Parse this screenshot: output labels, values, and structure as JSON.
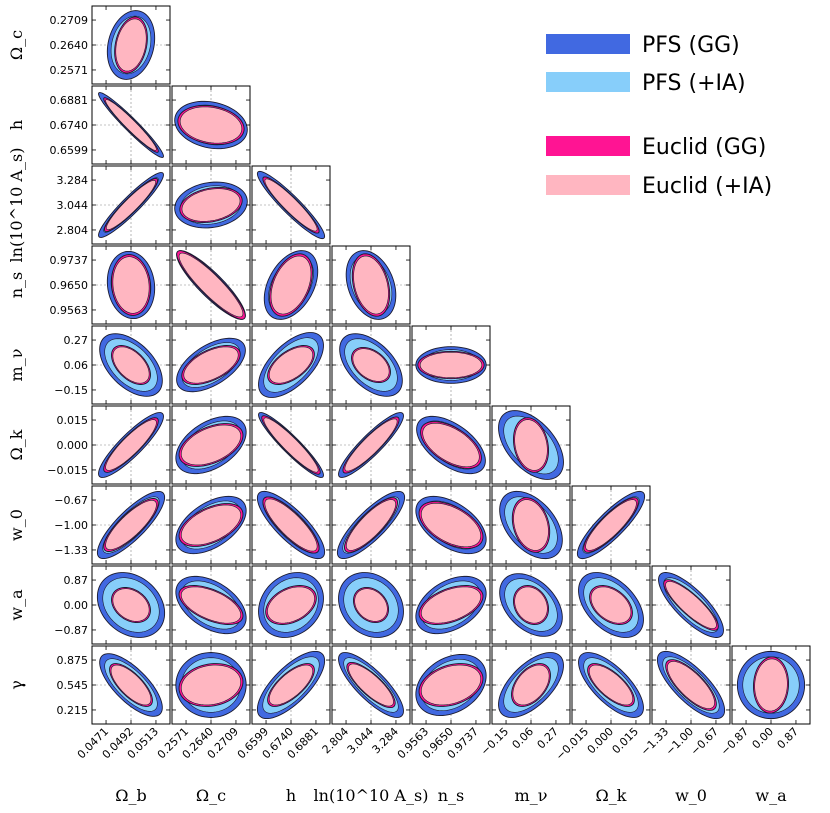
{
  "chart_data": {
    "type": "corner-plot",
    "title": "",
    "parameters": [
      {
        "key": "Ob",
        "label": "Ω_b",
        "ticks": [
          "0.0471",
          "0.0492",
          "0.0513"
        ],
        "tick_values": [
          0.0471,
          0.0492,
          0.0513
        ],
        "fiducial": 0.0492
      },
      {
        "key": "Oc",
        "label": "Ω_c",
        "ticks": [
          "0.2571",
          "0.2640",
          "0.2709"
        ],
        "tick_values": [
          0.2571,
          0.264,
          0.2709
        ],
        "fiducial": 0.264
      },
      {
        "key": "h",
        "label": "h",
        "ticks": [
          "0.6599",
          "0.6740",
          "0.6881"
        ],
        "tick_values": [
          0.6599,
          0.674,
          0.6881
        ],
        "fiducial": 0.674
      },
      {
        "key": "lnAs",
        "label": "ln(10^10 A_s)",
        "ticks": [
          "2.804",
          "3.044",
          "3.284"
        ],
        "tick_values": [
          2.804,
          3.044,
          3.284
        ],
        "fiducial": 3.044
      },
      {
        "key": "ns",
        "label": "n_s",
        "ticks": [
          "0.9563",
          "0.9650",
          "0.9737"
        ],
        "tick_values": [
          0.9563,
          0.965,
          0.9737
        ],
        "fiducial": 0.965
      },
      {
        "key": "mnu",
        "label": "m_ν",
        "ticks": [
          "−0.15",
          "0.06",
          "0.27"
        ],
        "tick_values": [
          -0.15,
          0.06,
          0.27
        ],
        "fiducial": 0.06
      },
      {
        "key": "Ok",
        "label": "Ω_k",
        "ticks": [
          "−0.015",
          "0.000",
          "0.015"
        ],
        "tick_values": [
          -0.015,
          0.0,
          0.015
        ],
        "fiducial": 0.0
      },
      {
        "key": "w0",
        "label": "w_0",
        "ticks": [
          "−1.33",
          "−1.00",
          "−0.67"
        ],
        "tick_values": [
          -1.33,
          -1.0,
          -0.67
        ],
        "fiducial": -1.0
      },
      {
        "key": "wa",
        "label": "w_a",
        "ticks": [
          "−0.87",
          "0.00",
          "0.87"
        ],
        "tick_values": [
          -0.87,
          0.0,
          0.87
        ],
        "fiducial": 0.0
      },
      {
        "key": "gamma",
        "label": "γ",
        "ticks": [
          "0.215",
          "0.545",
          "0.875"
        ],
        "tick_values": [
          0.215,
          0.545,
          0.875
        ],
        "fiducial": 0.545
      }
    ],
    "series": [
      {
        "name": "PFS (GG)",
        "color": "#4169e1",
        "scale": 1.0
      },
      {
        "name": "PFS (+IA)",
        "color": "#87cefa",
        "scale": 0.84
      },
      {
        "name": "Euclid (GG)",
        "color": "#ff1493",
        "scale": 0.62
      },
      {
        "name": "Euclid (+IA)",
        "color": "#ffb6c1",
        "scale": 0.6
      }
    ],
    "contours": {
      "Oc|Ob": {
        "sx": 0.62,
        "sy": 0.9,
        "rho": 0.2,
        "sx2": 0.42,
        "sy2": 0.72,
        "rho2": 0.25
      },
      "h|Ob": {
        "sx": 0.85,
        "sy": 0.85,
        "rho": -0.96,
        "sx2": 0.7,
        "sy2": 0.7,
        "rho2": -0.96
      },
      "h|Oc": {
        "sx": 0.95,
        "sy": 0.62,
        "rho": -0.2,
        "sx2": 0.85,
        "sy2": 0.5,
        "rho2": -0.2
      },
      "lnAs|Ob": {
        "sx": 0.85,
        "sy": 0.85,
        "rho": 0.93,
        "sx2": 0.68,
        "sy2": 0.68,
        "rho2": 0.93
      },
      "lnAs|Oc": {
        "sx": 0.95,
        "sy": 0.6,
        "rho": 0.15,
        "sx2": 0.8,
        "sy2": 0.45,
        "rho2": 0.25
      },
      "lnAs|h": {
        "sx": 0.88,
        "sy": 0.88,
        "rho": -0.93,
        "sx2": 0.72,
        "sy2": 0.72,
        "rho2": -0.93
      },
      "ns|Ob": {
        "sx": 0.62,
        "sy": 0.88,
        "rho": -0.1,
        "sx2": 0.5,
        "sy2": 0.78,
        "rho2": -0.1
      },
      "ns|Oc": {
        "sx": 0.9,
        "sy": 0.9,
        "rho": -0.88,
        "sx2": 0.88,
        "sy2": 0.88,
        "rho2": -0.9
      },
      "ns|h": {
        "sx": 0.7,
        "sy": 0.9,
        "rho": 0.4,
        "sx2": 0.55,
        "sy2": 0.8,
        "rho2": 0.4
      },
      "ns|lnAs": {
        "sx": 0.65,
        "sy": 0.9,
        "rho": -0.3,
        "sx2": 0.48,
        "sy2": 0.8,
        "rho2": -0.3
      },
      "mnu|Ob": {
        "sx": 0.82,
        "sy": 0.82,
        "rho": -0.5,
        "sx2": 0.5,
        "sy2": 0.5,
        "rho2": -0.5
      },
      "mnu|Oc": {
        "sx": 0.9,
        "sy": 0.7,
        "rho": 0.55,
        "sx2": 0.75,
        "sy2": 0.5,
        "rho2": 0.55
      },
      "mnu|h": {
        "sx": 0.85,
        "sy": 0.85,
        "rho": 0.6,
        "sx2": 0.6,
        "sy2": 0.5,
        "rho2": 0.55
      },
      "mnu|lnAs": {
        "sx": 0.82,
        "sy": 0.82,
        "rho": -0.5,
        "sx2": 0.5,
        "sy2": 0.45,
        "rho2": -0.4
      },
      "mnu|ns": {
        "sx": 0.92,
        "sy": 0.48,
        "rho": 0.0,
        "sx2": 0.85,
        "sy2": 0.35,
        "rho2": 0.0
      },
      "Ok|Ob": {
        "sx": 0.85,
        "sy": 0.85,
        "rho": 0.88,
        "sx2": 0.7,
        "sy2": 0.7,
        "rho2": 0.88
      },
      "Ok|Oc": {
        "sx": 0.92,
        "sy": 0.75,
        "rho": 0.45,
        "sx2": 0.82,
        "sy2": 0.55,
        "rho2": 0.45
      },
      "Ok|h": {
        "sx": 0.85,
        "sy": 0.85,
        "rho": -0.93,
        "sx2": 0.75,
        "sy2": 0.75,
        "rho2": -0.93
      },
      "Ok|lnAs": {
        "sx": 0.85,
        "sy": 0.85,
        "rho": 0.9,
        "sx2": 0.72,
        "sy2": 0.72,
        "rho2": 0.9
      },
      "Ok|ns": {
        "sx": 0.9,
        "sy": 0.75,
        "rho": -0.55,
        "sx2": 0.78,
        "sy2": 0.6,
        "rho2": -0.55
      },
      "Ok|mnu": {
        "sx": 0.85,
        "sy": 0.9,
        "rho": -0.5,
        "sx2": 0.45,
        "sy2": 0.7,
        "rho2": -0.2
      },
      "w0|Ob": {
        "sx": 0.88,
        "sy": 0.88,
        "rho": 0.82,
        "sx2": 0.7,
        "sy2": 0.68,
        "rho2": 0.82
      },
      "w0|Oc": {
        "sx": 0.92,
        "sy": 0.75,
        "rho": 0.5,
        "sx2": 0.82,
        "sy2": 0.55,
        "rho2": 0.5
      },
      "w0|h": {
        "sx": 0.88,
        "sy": 0.88,
        "rho": -0.8,
        "sx2": 0.72,
        "sy2": 0.72,
        "rho2": -0.82
      },
      "w0|lnAs": {
        "sx": 0.88,
        "sy": 0.88,
        "rho": 0.82,
        "sx2": 0.68,
        "sy2": 0.7,
        "rho2": 0.82
      },
      "w0|ns": {
        "sx": 0.92,
        "sy": 0.75,
        "rho": -0.5,
        "sx2": 0.82,
        "sy2": 0.6,
        "rho2": -0.5
      },
      "w0|mnu": {
        "sx": 0.82,
        "sy": 0.88,
        "rho": -0.45,
        "sx2": 0.48,
        "sy2": 0.7,
        "rho2": -0.25
      },
      "w0|Ok": {
        "sx": 0.88,
        "sy": 0.88,
        "rho": 0.85,
        "sx2": 0.7,
        "sy2": 0.7,
        "rho2": 0.85
      },
      "wa|Ob": {
        "sx": 0.88,
        "sy": 0.85,
        "rho": -0.25,
        "sx2": 0.5,
        "sy2": 0.45,
        "rho2": -0.3
      },
      "wa|Oc": {
        "sx": 0.92,
        "sy": 0.75,
        "rho": -0.45,
        "sx2": 0.82,
        "sy2": 0.5,
        "rho2": -0.55
      },
      "wa|h": {
        "sx": 0.85,
        "sy": 0.85,
        "rho": 0.2,
        "sx2": 0.65,
        "sy2": 0.5,
        "rho2": 0.35
      },
      "wa|lnAs": {
        "sx": 0.85,
        "sy": 0.85,
        "rho": -0.2,
        "sx2": 0.45,
        "sy2": 0.45,
        "rho2": -0.25
      },
      "wa|ns": {
        "sx": 0.92,
        "sy": 0.75,
        "rho": 0.4,
        "sx2": 0.82,
        "sy2": 0.5,
        "rho2": 0.45
      },
      "wa|mnu": {
        "sx": 0.82,
        "sy": 0.82,
        "rho": -0.4,
        "sx2": 0.45,
        "sy2": 0.5,
        "rho2": -0.2
      },
      "wa|Ok": {
        "sx": 0.85,
        "sy": 0.85,
        "rho": -0.45,
        "sx2": 0.55,
        "sy2": 0.5,
        "rho2": -0.4
      },
      "wa|w0": {
        "sx": 0.85,
        "sy": 0.85,
        "rho": -0.78,
        "sx2": 0.7,
        "sy2": 0.65,
        "rho2": -0.85
      },
      "gamma|Ob": {
        "sx": 0.82,
        "sy": 0.82,
        "rho": -0.72,
        "sx2": 0.55,
        "sy2": 0.55,
        "rho2": -0.72
      },
      "gamma|Oc": {
        "sx": 0.92,
        "sy": 0.85,
        "rho": 0.0,
        "sx2": 0.82,
        "sy2": 0.55,
        "rho2": 0.15
      },
      "gamma|h": {
        "sx": 0.88,
        "sy": 0.88,
        "rho": 0.72,
        "sx2": 0.6,
        "sy2": 0.55,
        "rho2": 0.7
      },
      "gamma|lnAs": {
        "sx": 0.85,
        "sy": 0.85,
        "rho": -0.8,
        "sx2": 0.62,
        "sy2": 0.58,
        "rho2": -0.8
      },
      "gamma|ns": {
        "sx": 0.92,
        "sy": 0.8,
        "rho": 0.3,
        "sx2": 0.82,
        "sy2": 0.55,
        "rho2": 0.3
      },
      "gamma|mnu": {
        "sx": 0.85,
        "sy": 0.85,
        "rho": 0.6,
        "sx2": 0.5,
        "sy2": 0.55,
        "rho2": 0.45
      },
      "gamma|Ok": {
        "sx": 0.85,
        "sy": 0.85,
        "rho": -0.7,
        "sx2": 0.6,
        "sy2": 0.55,
        "rho2": -0.7
      },
      "gamma|w0": {
        "sx": 0.88,
        "sy": 0.88,
        "rho": -0.75,
        "sx2": 0.65,
        "sy2": 0.65,
        "rho2": -0.75
      },
      "gamma|wa": {
        "sx": 0.88,
        "sy": 0.88,
        "rho": 0.0,
        "sx2": 0.45,
        "sy2": 0.72,
        "rho2": 0.05
      }
    }
  }
}
